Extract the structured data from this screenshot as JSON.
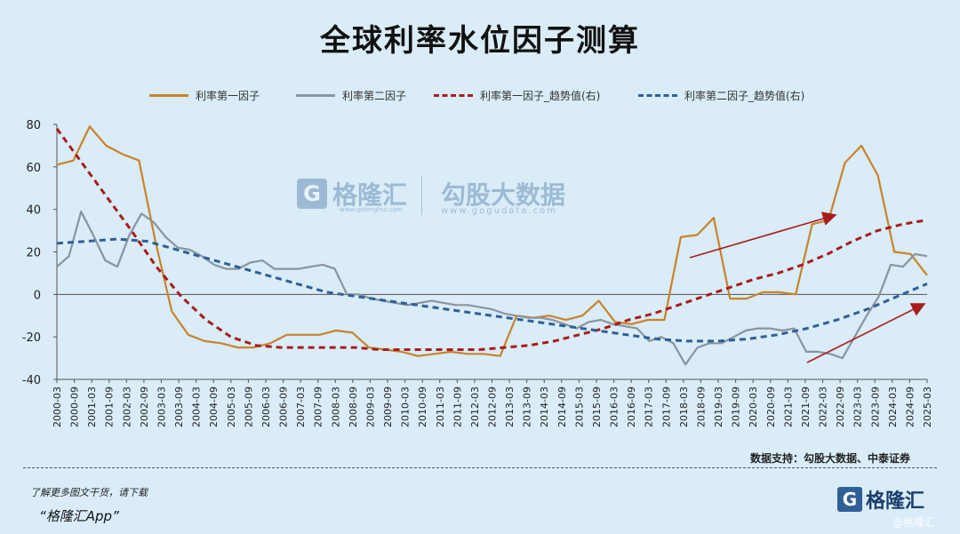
{
  "title": "全球利率水位因子测算",
  "source": "数据支持：勾股大数据、中泰证券",
  "footer": {
    "line1": "了解更多图文干货，请下载",
    "line2": "“格隆汇App”"
  },
  "watermark": {
    "brand": "格隆汇",
    "brand_sub": "www.gelonghui.com",
    "data_brand": "勾股大数据",
    "data_sub": "www.gogudata.com"
  },
  "logo": {
    "mark": "G",
    "text": "格隆汇",
    "sub": "@格隆汇"
  },
  "colors": {
    "background": "#d9ecf7",
    "factor1": "#c8832b",
    "factor2": "#8a949c",
    "trend1": "#a81c1c",
    "trend2": "#2f5f96",
    "arrow": "#a81c1c"
  },
  "chart_data": {
    "type": "line",
    "ylim": [
      -40,
      80
    ],
    "yticks": [
      80,
      60,
      40,
      20,
      0,
      -20,
      -40
    ],
    "xlabels": [
      "2000-03",
      "2000-09",
      "2001-03",
      "2001-09",
      "2002-03",
      "2002-09",
      "2003-03",
      "2003-09",
      "2004-03",
      "2004-09",
      "2005-03",
      "2005-09",
      "2006-03",
      "2006-09",
      "2007-03",
      "2007-09",
      "2008-03",
      "2008-09",
      "2009-03",
      "2009-09",
      "2010-03",
      "2010-09",
      "2011-03",
      "2011-09",
      "2012-03",
      "2012-09",
      "2013-03",
      "2013-09",
      "2014-03",
      "2014-09",
      "2015-03",
      "2015-09",
      "2016-03",
      "2016-09",
      "2017-03",
      "2017-09",
      "2018-03",
      "2018-09",
      "2019-03",
      "2019-09",
      "2020-03",
      "2020-09",
      "2021-03",
      "2021-09",
      "2022-03",
      "2022-09",
      "2023-03",
      "2023-09",
      "2024-03",
      "2024-09",
      "2025-03"
    ],
    "series": [
      {
        "name": "利率第一因子",
        "style": "solid",
        "values": [
          61,
          63,
          79,
          70,
          66,
          63,
          25,
          -8,
          -19,
          -22,
          -23,
          -25,
          -25,
          -23,
          -19,
          -19,
          -19,
          -17,
          -18,
          -25,
          -26,
          -27,
          -29,
          -28,
          -27,
          -28,
          -28,
          -29,
          -10,
          -11,
          -10,
          -12,
          -10,
          -3,
          -13,
          -14,
          -12,
          -12,
          27,
          28,
          36,
          -2,
          -2,
          1,
          1,
          0,
          33,
          35,
          62,
          70,
          56,
          20,
          19,
          9
        ]
      },
      {
        "name": "利率第二因子",
        "style": "solid",
        "values": [
          13,
          18,
          39,
          28,
          16,
          13,
          28,
          38,
          34,
          27,
          22,
          21,
          18,
          14,
          12,
          12,
          15,
          16,
          12,
          12,
          12,
          13,
          14,
          12,
          0,
          0,
          -2,
          -3,
          -4,
          -5,
          -4,
          -3,
          -4,
          -5,
          -5,
          -6,
          -7,
          -9,
          -10,
          -11,
          -11,
          -12,
          -14,
          -16,
          -13,
          -12,
          -14,
          -15,
          -16,
          -22,
          -20,
          -23,
          -33,
          -25,
          -23,
          -23,
          -20,
          -17,
          -16,
          -16,
          -17,
          -16,
          -27,
          -27,
          -28,
          -30,
          -20,
          -10,
          -1,
          14,
          13,
          19,
          18
        ]
      },
      {
        "name": "利率第一因子_趋势值(右)",
        "style": "dashed",
        "values": [
          78,
          62,
          46,
          30,
          13,
          -1,
          -12,
          -20,
          -24,
          -25,
          -25,
          -25,
          -25,
          -26,
          -26,
          -26,
          -26,
          -26,
          -25,
          -24,
          -22,
          -19,
          -16,
          -12,
          -9,
          -5,
          -1,
          3,
          7,
          10,
          14,
          19,
          25,
          30,
          33,
          35
        ]
      },
      {
        "name": "利率第二因子_趋势值(右)",
        "style": "dashed",
        "values": [
          24,
          25,
          26,
          25,
          21,
          17,
          13,
          9,
          5,
          1,
          -1,
          -3,
          -5,
          -7,
          -9,
          -11,
          -13,
          -15,
          -17,
          -19,
          -21,
          -22,
          -22,
          -21,
          -19,
          -16,
          -12,
          -7,
          -1,
          5
        ]
      }
    ]
  }
}
